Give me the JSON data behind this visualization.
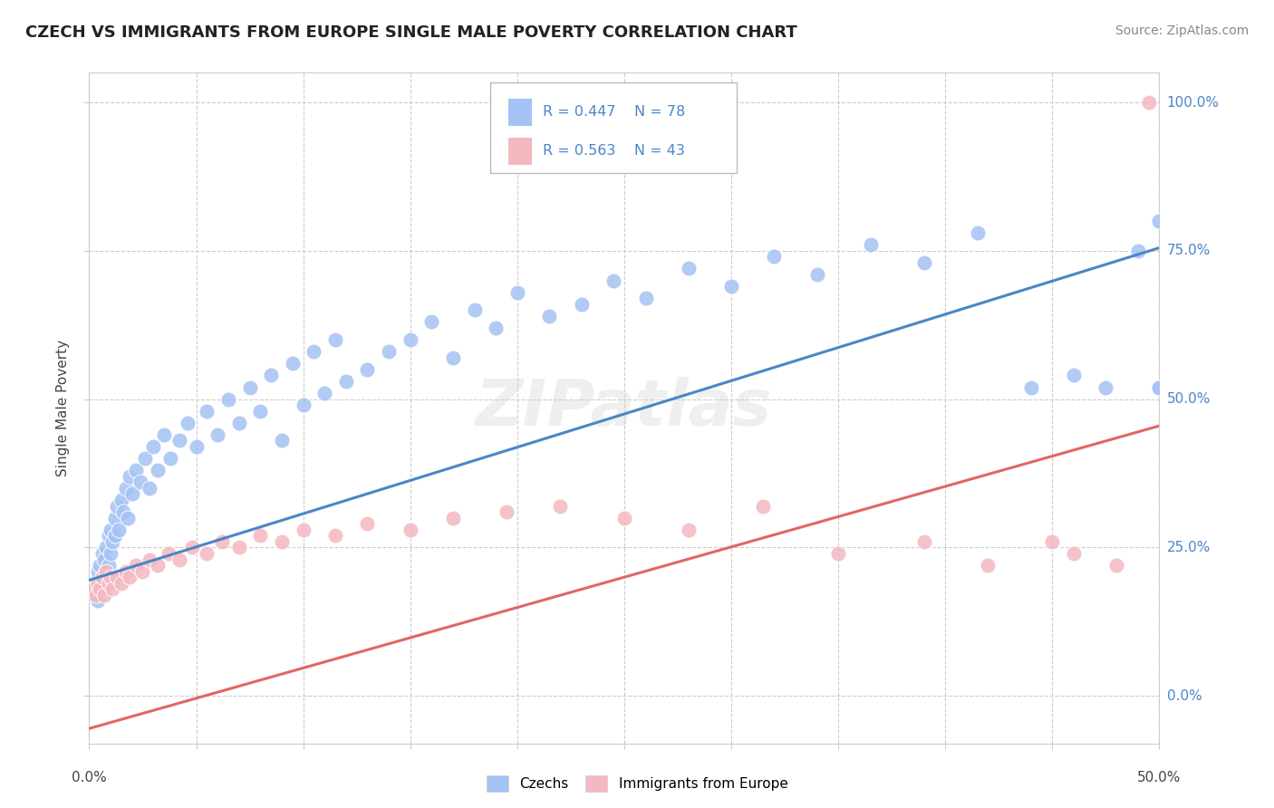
{
  "title": "CZECH VS IMMIGRANTS FROM EUROPE SINGLE MALE POVERTY CORRELATION CHART",
  "source": "Source: ZipAtlas.com",
  "ylabel": "Single Male Poverty",
  "legend_r1": "R = 0.447",
  "legend_n1": "N = 78",
  "legend_r2": "R = 0.563",
  "legend_n2": "N = 43",
  "blue_color": "#a4c2f4",
  "pink_color": "#f4b8c1",
  "blue_line_color": "#4a86c8",
  "pink_line_color": "#e06666",
  "watermark": "ZIPatlas",
  "xmin": 0.0,
  "xmax": 0.5,
  "ymin": -0.08,
  "ymax": 1.05,
  "ytick_vals": [
    0.0,
    0.25,
    0.5,
    0.75,
    1.0
  ],
  "ytick_labels": [
    "0.0%",
    "25.0%",
    "50.0%",
    "75.0%",
    "100.0%"
  ],
  "xtick_vals": [
    0.0,
    0.05,
    0.1,
    0.15,
    0.2,
    0.25,
    0.3,
    0.35,
    0.4,
    0.45,
    0.5
  ],
  "blue_line_x": [
    0.0,
    0.5
  ],
  "blue_line_y": [
    0.195,
    0.755
  ],
  "pink_line_x": [
    0.0,
    0.5
  ],
  "pink_line_y": [
    -0.055,
    0.455
  ],
  "czechs_x": [
    0.002,
    0.003,
    0.004,
    0.004,
    0.005,
    0.005,
    0.006,
    0.006,
    0.007,
    0.007,
    0.008,
    0.008,
    0.009,
    0.009,
    0.01,
    0.01,
    0.011,
    0.012,
    0.012,
    0.013,
    0.014,
    0.015,
    0.016,
    0.017,
    0.018,
    0.019,
    0.02,
    0.022,
    0.024,
    0.026,
    0.028,
    0.03,
    0.032,
    0.035,
    0.038,
    0.042,
    0.046,
    0.05,
    0.055,
    0.06,
    0.065,
    0.07,
    0.075,
    0.08,
    0.085,
    0.09,
    0.095,
    0.1,
    0.105,
    0.11,
    0.115,
    0.12,
    0.13,
    0.14,
    0.15,
    0.16,
    0.17,
    0.18,
    0.19,
    0.2,
    0.215,
    0.23,
    0.245,
    0.26,
    0.28,
    0.3,
    0.32,
    0.34,
    0.365,
    0.39,
    0.415,
    0.44,
    0.46,
    0.475,
    0.49,
    0.5,
    0.5,
    0.5
  ],
  "czechs_y": [
    0.17,
    0.19,
    0.16,
    0.21,
    0.18,
    0.22,
    0.2,
    0.24,
    0.19,
    0.23,
    0.21,
    0.25,
    0.22,
    0.27,
    0.24,
    0.28,
    0.26,
    0.3,
    0.27,
    0.32,
    0.28,
    0.33,
    0.31,
    0.35,
    0.3,
    0.37,
    0.34,
    0.38,
    0.36,
    0.4,
    0.35,
    0.42,
    0.38,
    0.44,
    0.4,
    0.43,
    0.46,
    0.42,
    0.48,
    0.44,
    0.5,
    0.46,
    0.52,
    0.48,
    0.54,
    0.43,
    0.56,
    0.49,
    0.58,
    0.51,
    0.6,
    0.53,
    0.55,
    0.58,
    0.6,
    0.63,
    0.57,
    0.65,
    0.62,
    0.68,
    0.64,
    0.66,
    0.7,
    0.67,
    0.72,
    0.69,
    0.74,
    0.71,
    0.76,
    0.73,
    0.78,
    0.52,
    0.54,
    0.52,
    0.75,
    0.8,
    0.52,
    0.52
  ],
  "immigrants_x": [
    0.002,
    0.003,
    0.004,
    0.005,
    0.006,
    0.007,
    0.008,
    0.009,
    0.01,
    0.011,
    0.013,
    0.015,
    0.017,
    0.019,
    0.022,
    0.025,
    0.028,
    0.032,
    0.037,
    0.042,
    0.048,
    0.055,
    0.062,
    0.07,
    0.08,
    0.09,
    0.1,
    0.115,
    0.13,
    0.15,
    0.17,
    0.195,
    0.22,
    0.25,
    0.28,
    0.315,
    0.35,
    0.39,
    0.42,
    0.45,
    0.46,
    0.48,
    0.495
  ],
  "immigrants_y": [
    0.18,
    0.17,
    0.19,
    0.18,
    0.2,
    0.17,
    0.21,
    0.19,
    0.2,
    0.18,
    0.2,
    0.19,
    0.21,
    0.2,
    0.22,
    0.21,
    0.23,
    0.22,
    0.24,
    0.23,
    0.25,
    0.24,
    0.26,
    0.25,
    0.27,
    0.26,
    0.28,
    0.27,
    0.29,
    0.28,
    0.3,
    0.31,
    0.32,
    0.3,
    0.28,
    0.32,
    0.24,
    0.26,
    0.22,
    0.26,
    0.24,
    0.22,
    1.0
  ]
}
